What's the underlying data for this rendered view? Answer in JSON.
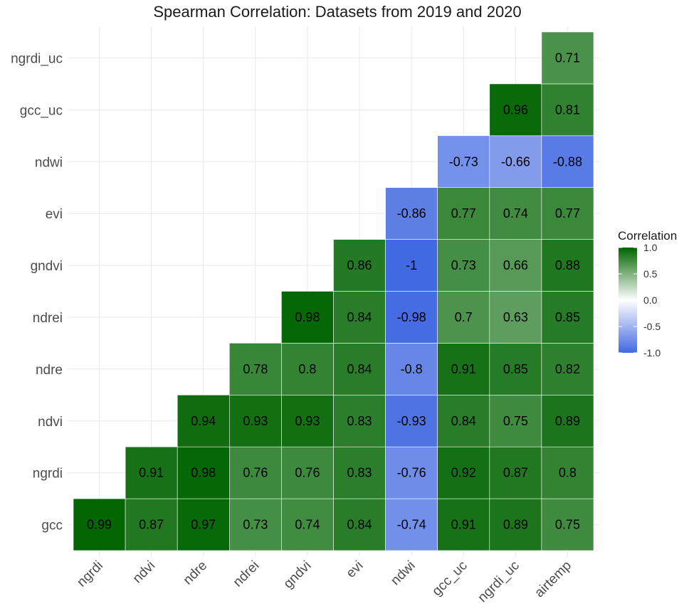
{
  "chart_data": {
    "type": "heatmap",
    "title": "Spearman Correlation: Datasets from 2019 and 2020",
    "xlabel": "",
    "ylabel": "",
    "x_categories": [
      "ngrdi",
      "ndvi",
      "ndre",
      "ndrei",
      "gndvi",
      "evi",
      "ndwi",
      "gcc_uc",
      "ngrdi_uc",
      "airtemp"
    ],
    "y_categories": [
      "gcc",
      "ngrdi",
      "ndvi",
      "ndre",
      "ndrei",
      "gndvi",
      "evi",
      "ndwi",
      "gcc_uc",
      "ngrdi_uc"
    ],
    "cells": [
      {
        "x": "ngrdi",
        "y": "gcc",
        "value": 0.99,
        "label": "0.99"
      },
      {
        "x": "ndvi",
        "y": "gcc",
        "value": 0.87,
        "label": "0.87"
      },
      {
        "x": "ndre",
        "y": "gcc",
        "value": 0.97,
        "label": "0.97"
      },
      {
        "x": "ndrei",
        "y": "gcc",
        "value": 0.73,
        "label": "0.73"
      },
      {
        "x": "gndvi",
        "y": "gcc",
        "value": 0.74,
        "label": "0.74"
      },
      {
        "x": "evi",
        "y": "gcc",
        "value": 0.84,
        "label": "0.84"
      },
      {
        "x": "ndwi",
        "y": "gcc",
        "value": -0.74,
        "label": "-0.74"
      },
      {
        "x": "gcc_uc",
        "y": "gcc",
        "value": 0.91,
        "label": "0.91"
      },
      {
        "x": "ngrdi_uc",
        "y": "gcc",
        "value": 0.89,
        "label": "0.89"
      },
      {
        "x": "airtemp",
        "y": "gcc",
        "value": 0.75,
        "label": "0.75"
      },
      {
        "x": "ndvi",
        "y": "ngrdi",
        "value": 0.91,
        "label": "0.91"
      },
      {
        "x": "ndre",
        "y": "ngrdi",
        "value": 0.98,
        "label": "0.98"
      },
      {
        "x": "ndrei",
        "y": "ngrdi",
        "value": 0.76,
        "label": "0.76"
      },
      {
        "x": "gndvi",
        "y": "ngrdi",
        "value": 0.76,
        "label": "0.76"
      },
      {
        "x": "evi",
        "y": "ngrdi",
        "value": 0.83,
        "label": "0.83"
      },
      {
        "x": "ndwi",
        "y": "ngrdi",
        "value": -0.76,
        "label": "-0.76"
      },
      {
        "x": "gcc_uc",
        "y": "ngrdi",
        "value": 0.92,
        "label": "0.92"
      },
      {
        "x": "ngrdi_uc",
        "y": "ngrdi",
        "value": 0.87,
        "label": "0.87"
      },
      {
        "x": "airtemp",
        "y": "ngrdi",
        "value": 0.8,
        "label": "0.8"
      },
      {
        "x": "ndre",
        "y": "ndvi",
        "value": 0.94,
        "label": "0.94"
      },
      {
        "x": "ndrei",
        "y": "ndvi",
        "value": 0.93,
        "label": "0.93"
      },
      {
        "x": "gndvi",
        "y": "ndvi",
        "value": 0.93,
        "label": "0.93"
      },
      {
        "x": "evi",
        "y": "ndvi",
        "value": 0.83,
        "label": "0.83"
      },
      {
        "x": "ndwi",
        "y": "ndvi",
        "value": -0.93,
        "label": "-0.93"
      },
      {
        "x": "gcc_uc",
        "y": "ndvi",
        "value": 0.84,
        "label": "0.84"
      },
      {
        "x": "ngrdi_uc",
        "y": "ndvi",
        "value": 0.75,
        "label": "0.75"
      },
      {
        "x": "airtemp",
        "y": "ndvi",
        "value": 0.89,
        "label": "0.89"
      },
      {
        "x": "ndrei",
        "y": "ndre",
        "value": 0.78,
        "label": "0.78"
      },
      {
        "x": "gndvi",
        "y": "ndre",
        "value": 0.8,
        "label": "0.8"
      },
      {
        "x": "evi",
        "y": "ndre",
        "value": 0.84,
        "label": "0.84"
      },
      {
        "x": "ndwi",
        "y": "ndre",
        "value": -0.8,
        "label": "-0.8"
      },
      {
        "x": "gcc_uc",
        "y": "ndre",
        "value": 0.91,
        "label": "0.91"
      },
      {
        "x": "ngrdi_uc",
        "y": "ndre",
        "value": 0.85,
        "label": "0.85"
      },
      {
        "x": "airtemp",
        "y": "ndre",
        "value": 0.82,
        "label": "0.82"
      },
      {
        "x": "gndvi",
        "y": "ndrei",
        "value": 0.98,
        "label": "0.98"
      },
      {
        "x": "evi",
        "y": "ndrei",
        "value": 0.84,
        "label": "0.84"
      },
      {
        "x": "ndwi",
        "y": "ndrei",
        "value": -0.98,
        "label": "-0.98"
      },
      {
        "x": "gcc_uc",
        "y": "ndrei",
        "value": 0.7,
        "label": "0.7"
      },
      {
        "x": "ngrdi_uc",
        "y": "ndrei",
        "value": 0.63,
        "label": "0.63"
      },
      {
        "x": "airtemp",
        "y": "ndrei",
        "value": 0.85,
        "label": "0.85"
      },
      {
        "x": "evi",
        "y": "gndvi",
        "value": 0.86,
        "label": "0.86"
      },
      {
        "x": "ndwi",
        "y": "gndvi",
        "value": -1,
        "label": "-1"
      },
      {
        "x": "gcc_uc",
        "y": "gndvi",
        "value": 0.73,
        "label": "0.73"
      },
      {
        "x": "ngrdi_uc",
        "y": "gndvi",
        "value": 0.66,
        "label": "0.66"
      },
      {
        "x": "airtemp",
        "y": "gndvi",
        "value": 0.88,
        "label": "0.88"
      },
      {
        "x": "ndwi",
        "y": "evi",
        "value": -0.86,
        "label": "-0.86"
      },
      {
        "x": "gcc_uc",
        "y": "evi",
        "value": 0.77,
        "label": "0.77"
      },
      {
        "x": "ngrdi_uc",
        "y": "evi",
        "value": 0.74,
        "label": "0.74"
      },
      {
        "x": "airtemp",
        "y": "evi",
        "value": 0.77,
        "label": "0.77"
      },
      {
        "x": "gcc_uc",
        "y": "ndwi",
        "value": -0.73,
        "label": "-0.73"
      },
      {
        "x": "ngrdi_uc",
        "y": "ndwi",
        "value": -0.66,
        "label": "-0.66"
      },
      {
        "x": "airtemp",
        "y": "ndwi",
        "value": -0.88,
        "label": "-0.88"
      },
      {
        "x": "ngrdi_uc",
        "y": "gcc_uc",
        "value": 0.96,
        "label": "0.96"
      },
      {
        "x": "airtemp",
        "y": "gcc_uc",
        "value": 0.81,
        "label": "0.81"
      },
      {
        "x": "airtemp",
        "y": "ngrdi_uc",
        "value": 0.71,
        "label": "0.71"
      }
    ],
    "color_scale": {
      "low": "#4169e1",
      "mid": "#ffffff",
      "high": "#006400",
      "limits": [
        -1,
        1
      ]
    },
    "legend": {
      "title": "Correlation",
      "position": "right",
      "ticks": [
        "1.0",
        "0.5",
        "0.0",
        "-0.5",
        "-1.0"
      ],
      "tick_values": [
        1,
        0.5,
        0,
        -0.5,
        -1
      ]
    }
  }
}
